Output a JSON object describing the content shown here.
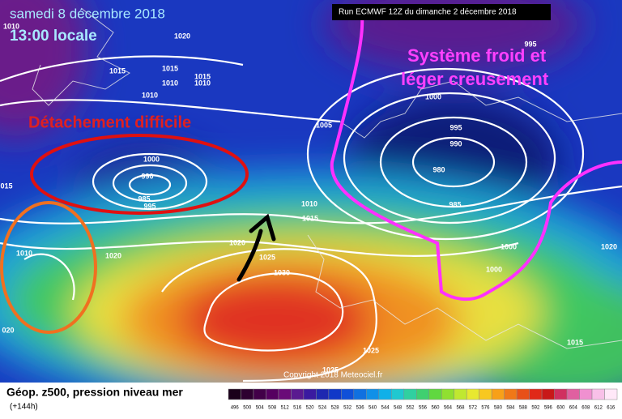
{
  "header": {
    "date": "samedi 8 décembre 2018",
    "time": "13:00 locale",
    "run": "Run ECMWF 12Z du dimanche 2 décembre 2018"
  },
  "annotations": {
    "cold_system": [
      "Système froid et",
      "léger creusement"
    ],
    "detachment": "Détachement difficile"
  },
  "isobar_labels": [
    "1010",
    "1020",
    "1015",
    "1015",
    "1015",
    "1010",
    "1010",
    "1010",
    "1005",
    "995",
    "1000",
    "995",
    "990",
    "980",
    "985",
    "1000",
    "990",
    "985",
    "995",
    "1010",
    "1015",
    "1020",
    "1020",
    "1010",
    "1025",
    "1030",
    "1000",
    "1000",
    "1020",
    "1015",
    "1025",
    "1025",
    "015",
    "020"
  ],
  "copyright": "Copyright 2018 Meteociel.fr",
  "footer": {
    "title": "Géop. z500, pression niveau mer",
    "lead": "(+144h)"
  },
  "legend": {
    "scale": [
      496,
      500,
      504,
      508,
      512,
      516,
      520,
      524,
      528,
      532,
      536,
      540,
      544,
      548,
      552,
      556,
      560,
      564,
      568,
      572,
      576,
      580,
      584,
      588,
      592,
      596,
      600,
      604,
      608,
      612,
      616
    ],
    "colors": [
      "#1a001a",
      "#2e0030",
      "#420048",
      "#560060",
      "#6a0a78",
      "#5a1a90",
      "#3a1aa0",
      "#1e28b0",
      "#1038c8",
      "#1050d8",
      "#1070e0",
      "#1090e8",
      "#10b0e8",
      "#20c8d0",
      "#30d0a0",
      "#40d070",
      "#60d840",
      "#90e030",
      "#c0e830",
      "#e8e830",
      "#f8c820",
      "#f8a018",
      "#f07818",
      "#e85018",
      "#e02818",
      "#c81818",
      "#d03060",
      "#e060a0",
      "#f090d0",
      "#f8c0e8",
      "#ffe8f8"
    ]
  }
}
